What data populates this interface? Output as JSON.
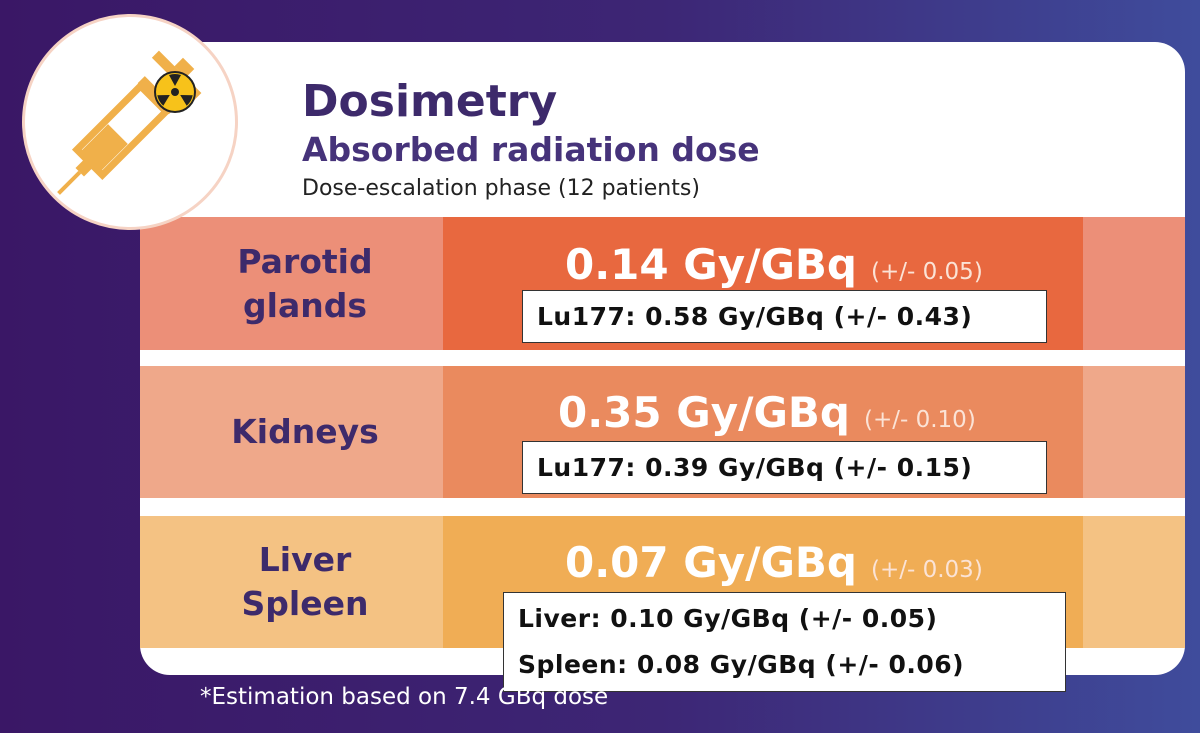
{
  "header": {
    "title": "Dosimetry",
    "subtitle": "Absorbed radiation dose",
    "note": "Dose-escalation phase (12 patients)"
  },
  "rows": [
    {
      "label": [
        "Parotid",
        "glands"
      ],
      "value": "0.14 Gy/GBq",
      "error": "(+/- 0.05)",
      "comparison": [
        "Lu177: 0.58 Gy/GBq (+/- 0.43)"
      ]
    },
    {
      "label": [
        "Kidneys"
      ],
      "value": "0.35 Gy/GBq",
      "error": "(+/- 0.10)",
      "comparison": [
        "Lu177: 0.39 Gy/GBq (+/- 0.15)"
      ]
    },
    {
      "label": [
        "Liver",
        "Spleen"
      ],
      "value": "0.07 Gy/GBq",
      "error": "(+/- 0.03)",
      "comparison": [
        "Liver: 0.10 Gy/GBq (+/- 0.05)",
        "Spleen: 0.08 Gy/GBq (+/- 0.06)"
      ]
    }
  ],
  "footnote": "*Estimation based on 7.4 GBq dose"
}
